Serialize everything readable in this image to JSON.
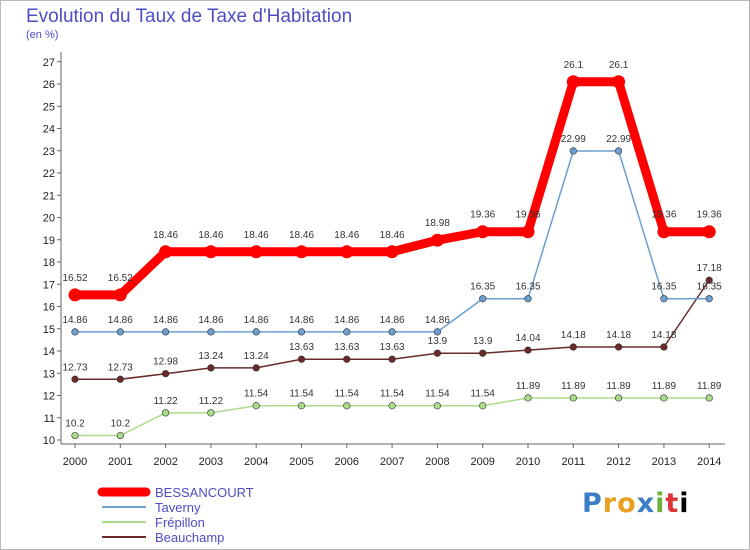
{
  "title": "Evolution du Taux de Taxe d'Habitation",
  "subtitle": "(en %)",
  "logo_text": "Proxiti",
  "chart_data": {
    "type": "line",
    "title": "Evolution du Taux de Taxe d'Habitation",
    "ylabel": "(en %)",
    "xlabel": "",
    "categories": [
      "2000",
      "2001",
      "2002",
      "2003",
      "2004",
      "2005",
      "2006",
      "2007",
      "2008",
      "2009",
      "2010",
      "2011",
      "2012",
      "2013",
      "2014"
    ],
    "ylim": [
      10,
      27
    ],
    "yticks": [
      "10",
      "11",
      "12",
      "13",
      "14",
      "15",
      "16",
      "17",
      "18",
      "19",
      "20",
      "21",
      "22",
      "23",
      "24",
      "25",
      "26",
      "27"
    ],
    "grid": false,
    "legend_position": "bottom-left",
    "series": [
      {
        "name": "BESSANCOURT",
        "color": "#ff0000",
        "values": [
          16.52,
          16.52,
          18.46,
          18.46,
          18.46,
          18.46,
          18.46,
          18.46,
          18.98,
          19.36,
          19.36,
          26.1,
          26.1,
          19.36,
          19.36
        ],
        "labels": [
          "16.52",
          "16.52",
          "18.46",
          "18.46",
          "18.46",
          "18.46",
          "18.46",
          "18.46",
          "18.98",
          "19.36",
          "19.36",
          "26.1",
          "26.1",
          "19.36",
          "19.36"
        ]
      },
      {
        "name": "Taverny",
        "color": "#6a9fd0",
        "values": [
          14.86,
          14.86,
          14.86,
          14.86,
          14.86,
          14.86,
          14.86,
          14.86,
          14.86,
          16.35,
          16.35,
          22.99,
          22.99,
          16.35,
          16.35
        ],
        "labels": [
          "14.86",
          "14.86",
          "14.86",
          "14.86",
          "14.86",
          "14.86",
          "14.86",
          "14.86",
          "14.86",
          "16.35",
          "16.35",
          "22.99",
          "22.99",
          "16.35",
          "16.35"
        ]
      },
      {
        "name": "Frépillon",
        "color": "#a8dc88",
        "values": [
          10.2,
          10.2,
          11.22,
          11.22,
          11.54,
          11.54,
          11.54,
          11.54,
          11.54,
          11.54,
          11.89,
          11.89,
          11.89,
          11.89,
          11.89
        ],
        "labels": [
          "10.2",
          "10.2",
          "11.22",
          "11.22",
          "11.54",
          "11.54",
          "11.54",
          "11.54",
          "11.54",
          "11.54",
          "11.89",
          "11.89",
          "11.89",
          "11.89",
          "11.89"
        ]
      },
      {
        "name": "Beauchamp",
        "color": "#6b2a2a",
        "values": [
          12.73,
          12.73,
          12.98,
          13.24,
          13.24,
          13.63,
          13.63,
          13.63,
          13.9,
          13.9,
          14.04,
          14.18,
          14.18,
          14.18,
          17.18
        ],
        "labels": [
          "12.73",
          "12.73",
          "12.98",
          "13.24",
          "13.24",
          "13.63",
          "13.63",
          "13.63",
          "13.9",
          "13.9",
          "14.04",
          "14.18",
          "14.18",
          "14.18",
          "17.18"
        ]
      }
    ]
  }
}
